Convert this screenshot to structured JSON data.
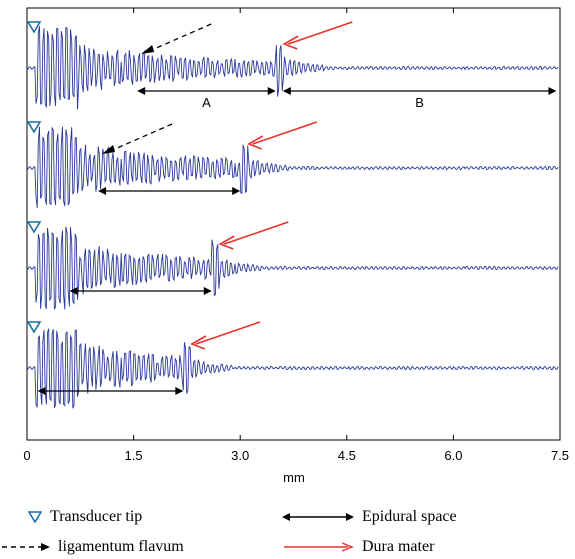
{
  "chart_data": {
    "type": "line",
    "title": "",
    "xlabel": "mm",
    "ylabel": "",
    "xlim": [
      0,
      7.5
    ],
    "xticks": [
      "0",
      "1.5",
      "3.0",
      "4.5",
      "6.0",
      "7.5"
    ],
    "grid": false,
    "legend_placement": "bottom",
    "traces": [
      {
        "transducer_tip_mm": 0.15,
        "ligamentum_flavum_mm": 1.55,
        "dura_mater_mm": 3.55,
        "segments": [
          {
            "label": "A",
            "start_mm": 1.55,
            "end_mm": 3.5
          },
          {
            "label": "B",
            "start_mm": 3.6,
            "end_mm": 7.45
          }
        ]
      },
      {
        "transducer_tip_mm": 0.15,
        "ligamentum_flavum_mm": 1.0,
        "dura_mater_mm": 3.05,
        "segments": [
          {
            "label": "",
            "start_mm": 1.0,
            "end_mm": 3.0
          }
        ]
      },
      {
        "transducer_tip_mm": 0.15,
        "dura_mater_mm": 2.65,
        "segments": [
          {
            "label": "",
            "start_mm": 0.6,
            "end_mm": 2.6
          }
        ]
      },
      {
        "transducer_tip_mm": 0.15,
        "dura_mater_mm": 2.25,
        "segments": [
          {
            "label": "",
            "start_mm": 0.15,
            "end_mm": 2.2
          }
        ]
      }
    ]
  },
  "legend": {
    "transducer_tip": "Transducer tip",
    "epidural_space": "Epidural space",
    "ligamentum_flavum": "ligamentum flavum",
    "dura_mater": "Dura mater"
  },
  "colors": {
    "signal": "#2b3a9a",
    "dura_arrow": "#e8322c",
    "flavum_arrow": "#000000",
    "tip_marker": "#1b6fa8"
  }
}
